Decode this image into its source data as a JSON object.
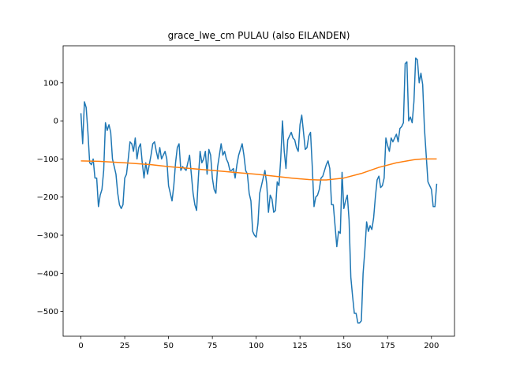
{
  "chart_data": {
    "type": "line",
    "title": "grace_lwe_cm PULAU (also EILANDEN)",
    "xlim": [
      -10.15,
      213.15
    ],
    "xticks": [
      0,
      25,
      50,
      75,
      100,
      125,
      150,
      175,
      200
    ],
    "ylim": [
      -565,
      197
    ],
    "yticks": [
      {
        "value": -500,
        "label": "−500"
      },
      {
        "value": -400,
        "label": "−400"
      },
      {
        "value": -300,
        "label": "−300"
      },
      {
        "value": -200,
        "label": "−200"
      },
      {
        "value": -100,
        "label": "−100"
      },
      0,
      100
    ],
    "series": [
      {
        "color": "#1f77b4",
        "x": [
          0,
          1,
          2,
          3,
          4,
          5,
          6,
          7,
          8,
          9,
          10,
          11,
          12,
          13,
          14,
          15,
          16,
          17,
          18,
          19,
          20,
          21,
          22,
          23,
          24,
          25,
          26,
          27,
          28,
          29,
          30,
          31,
          32,
          33,
          34,
          35,
          36,
          37,
          38,
          39,
          40,
          41,
          42,
          43,
          44,
          45,
          46,
          47,
          48,
          49,
          50,
          51,
          52,
          53,
          54,
          55,
          56,
          57,
          58,
          59,
          60,
          61,
          62,
          63,
          64,
          65,
          66,
          67,
          68,
          69,
          70,
          71,
          72,
          73,
          74,
          75,
          76,
          77,
          78,
          79,
          80,
          81,
          82,
          83,
          84,
          85,
          86,
          87,
          88,
          89,
          90,
          91,
          92,
          93,
          94,
          95,
          96,
          97,
          98,
          99,
          100,
          101,
          102,
          103,
          104,
          105,
          106,
          107,
          108,
          109,
          110,
          111,
          112,
          113,
          114,
          115,
          116,
          117,
          118,
          119,
          120,
          121,
          122,
          123,
          124,
          125,
          126,
          127,
          128,
          129,
          130,
          131,
          132,
          133,
          134,
          135,
          136,
          137,
          138,
          139,
          140,
          141,
          142,
          143,
          144,
          145,
          146,
          147,
          148,
          149,
          150,
          151,
          152,
          153,
          154,
          155,
          156,
          157,
          158,
          159,
          160,
          161,
          162,
          163,
          164,
          165,
          166,
          167,
          168,
          169,
          170,
          171,
          172,
          173,
          174,
          175,
          176,
          177,
          178,
          179,
          180,
          181,
          182,
          183,
          184,
          185,
          186,
          187,
          188,
          189,
          190,
          191,
          192,
          193,
          194,
          195,
          196,
          197,
          198,
          199,
          200,
          201,
          202,
          203
        ],
        "values": [
          20,
          -60,
          50,
          35,
          -30,
          -110,
          -115,
          -100,
          -150,
          -150,
          -225,
          -195,
          -180,
          -130,
          -5,
          -25,
          -10,
          -30,
          -100,
          -120,
          -140,
          -190,
          -220,
          -230,
          -220,
          -150,
          -140,
          -100,
          -55,
          -60,
          -80,
          -45,
          -100,
          -70,
          -60,
          -110,
          -150,
          -110,
          -140,
          -115,
          -90,
          -60,
          -55,
          -80,
          -100,
          -70,
          -100,
          -90,
          -80,
          -100,
          -170,
          -190,
          -210,
          -170,
          -110,
          -70,
          -60,
          -130,
          -120,
          -125,
          -130,
          -110,
          -90,
          -140,
          -190,
          -220,
          -235,
          -150,
          -80,
          -110,
          -100,
          -80,
          -140,
          -75,
          -90,
          -150,
          -180,
          -190,
          -120,
          -90,
          -60,
          -90,
          -80,
          -100,
          -110,
          -130,
          -130,
          -125,
          -150,
          -115,
          -90,
          -75,
          -60,
          -90,
          -130,
          -140,
          -190,
          -210,
          -290,
          -300,
          -305,
          -270,
          -190,
          -170,
          -150,
          -130,
          -165,
          -240,
          -195,
          -205,
          -240,
          -235,
          -160,
          -170,
          -100,
          0,
          -80,
          -125,
          -50,
          -40,
          -30,
          -45,
          -50,
          -70,
          -80,
          -10,
          15,
          -30,
          -75,
          -70,
          -40,
          -30,
          -120,
          -225,
          -200,
          -195,
          -180,
          -150,
          -145,
          -130,
          -115,
          -105,
          -125,
          -220,
          -220,
          -275,
          -330,
          -290,
          -295,
          -135,
          -230,
          -210,
          -195,
          -260,
          -410,
          -460,
          -505,
          -505,
          -530,
          -530,
          -525,
          -400,
          -340,
          -265,
          -290,
          -275,
          -285,
          -255,
          -200,
          -155,
          -145,
          -175,
          -170,
          -150,
          -45,
          -65,
          -80,
          -45,
          -55,
          -45,
          -35,
          -55,
          -20,
          -15,
          -5,
          150,
          155,
          0,
          10,
          -5,
          50,
          165,
          160,
          100,
          125,
          95,
          -20,
          -90,
          -160,
          -170,
          -180,
          -225,
          -225,
          -165
        ]
      },
      {
        "color": "#ff7f0e",
        "x": [
          0,
          10,
          25,
          40,
          50,
          60,
          75,
          90,
          100,
          110,
          120,
          130,
          135,
          140,
          150,
          160,
          165,
          170,
          180,
          190,
          195,
          203
        ],
        "values": [
          -105,
          -106,
          -110,
          -115,
          -120,
          -124,
          -130,
          -136,
          -140,
          -145,
          -150,
          -154,
          -155,
          -155,
          -150,
          -138,
          -130,
          -122,
          -110,
          -102,
          -100,
          -100
        ]
      }
    ]
  }
}
